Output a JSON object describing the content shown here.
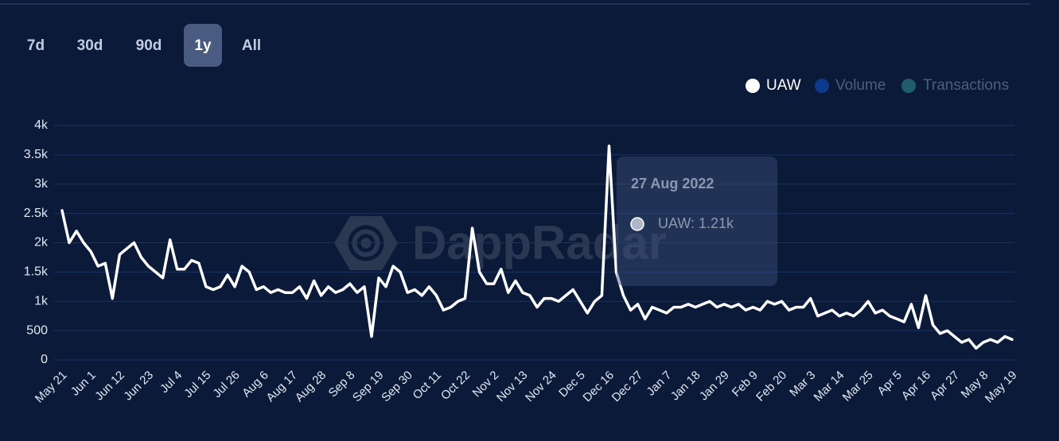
{
  "range_buttons": [
    "7d",
    "30d",
    "90d",
    "1y",
    "All"
  ],
  "selected_range": "1y",
  "watermark": "DappRadar",
  "chart_data": {
    "type": "line",
    "categories": [
      "May 21",
      null,
      null,
      null,
      "Jun 1",
      null,
      null,
      null,
      "Jun 12",
      null,
      null,
      null,
      "Jun 23",
      null,
      null,
      null,
      "Jul 4",
      null,
      null,
      null,
      "Jul 15",
      null,
      null,
      null,
      "Jul 26",
      null,
      null,
      null,
      "Aug 6",
      null,
      null,
      null,
      "Aug 17",
      null,
      null,
      null,
      "Aug 28",
      null,
      null,
      null,
      "Sep 8",
      null,
      null,
      null,
      "Sep 19",
      null,
      null,
      null,
      "Sep 30",
      null,
      null,
      null,
      "Oct 11",
      null,
      null,
      null,
      "Oct 22",
      null,
      null,
      null,
      "Nov 2",
      null,
      null,
      null,
      "Nov 13",
      null,
      null,
      null,
      "Nov 24",
      null,
      null,
      null,
      "Dec 5",
      null,
      null,
      null,
      "Dec 16",
      null,
      null,
      null,
      "Dec 27",
      null,
      null,
      null,
      "Jan 7",
      null,
      null,
      null,
      "Jan 18",
      null,
      null,
      null,
      "Jan 29",
      null,
      null,
      null,
      "Feb 9",
      null,
      null,
      null,
      "Feb 20",
      null,
      null,
      null,
      "Mar 3",
      null,
      null,
      null,
      "Mar 14",
      null,
      null,
      null,
      "Mar 25",
      null,
      null,
      null,
      "Apr 5",
      null,
      null,
      null,
      "Apr 16",
      null,
      null,
      null,
      "Apr 27",
      null,
      null,
      null,
      "May 8",
      null,
      null,
      null,
      "May 19"
    ],
    "series": [
      {
        "name": "UAW",
        "color": "#ffffff",
        "values": [
          2550,
          2000,
          2200,
          2000,
          1850,
          1600,
          1650,
          1050,
          1800,
          1900,
          2000,
          1750,
          1600,
          1500,
          1400,
          2050,
          1550,
          1550,
          1700,
          1650,
          1250,
          1200,
          1250,
          1450,
          1250,
          1600,
          1500,
          1200,
          1250,
          1150,
          1200,
          1150,
          1150,
          1250,
          1050,
          1350,
          1100,
          1250,
          1150,
          1200,
          1300,
          1150,
          1250,
          400,
          1400,
          1250,
          1600,
          1500,
          1150,
          1200,
          1100,
          1250,
          1100,
          850,
          900,
          1000,
          1050,
          2250,
          1500,
          1300,
          1300,
          1550,
          1150,
          1350,
          1150,
          1100,
          900,
          1050,
          1050,
          1000,
          1100,
          1200,
          1000,
          800,
          1000,
          1100,
          3650,
          1500,
          1100,
          850,
          950,
          700,
          900,
          850,
          800,
          900,
          900,
          950,
          900,
          950,
          1000,
          900,
          950,
          900,
          950,
          850,
          900,
          850,
          1000,
          950,
          1000,
          850,
          900,
          900,
          1050,
          750,
          800,
          850,
          750,
          800,
          750,
          850,
          1000,
          800,
          850,
          750,
          700,
          650,
          950,
          550,
          1100,
          600,
          450,
          500,
          400,
          300,
          350,
          200,
          300,
          350,
          300,
          400,
          350
        ]
      }
    ],
    "hidden_series": [
      {
        "name": "Volume",
        "color": "#0e3a8c"
      },
      {
        "name": "Transactions",
        "color": "#1f5d6a"
      }
    ],
    "ylim": [
      0,
      4000
    ],
    "yticks": [
      0,
      500,
      {
        "value": 1000,
        "label": "1k"
      },
      {
        "value": 1500,
        "label": "1.5k"
      },
      {
        "value": 2000,
        "label": "2k"
      },
      {
        "value": 2500,
        "label": "2.5k"
      },
      {
        "value": 3000,
        "label": "3k"
      },
      {
        "value": 3500,
        "label": "3.5k"
      },
      {
        "value": 4000,
        "label": "4k"
      }
    ],
    "grid": true,
    "tooltip": {
      "title": "27 Aug 2022",
      "label": "UAW: 1.21k"
    }
  }
}
